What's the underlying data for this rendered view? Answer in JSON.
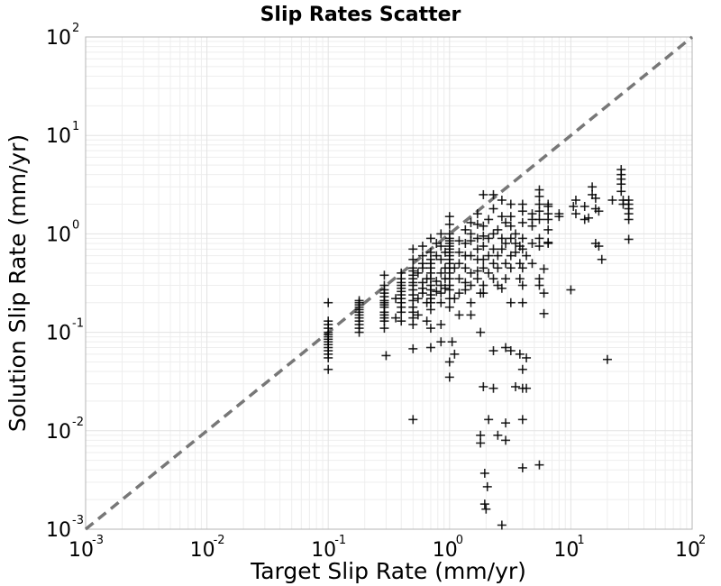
{
  "chart_data": {
    "type": "scatter",
    "title": "Slip Rates Scatter",
    "xlabel": "Target Slip Rate (mm/yr)",
    "ylabel": "Solution Slip Rate (mm/yr)",
    "xscale": "log",
    "yscale": "log",
    "xlim": [
      0.001,
      100
    ],
    "ylim": [
      0.001,
      100
    ],
    "grid": true,
    "x_ticks": [
      {
        "base": "10",
        "exp": "-3"
      },
      {
        "base": "10",
        "exp": "-2"
      },
      {
        "base": "10",
        "exp": "-1"
      },
      {
        "base": "10",
        "exp": "0"
      },
      {
        "base": "10",
        "exp": "1"
      },
      {
        "base": "10",
        "exp": "2"
      }
    ],
    "y_ticks": [
      {
        "base": "10",
        "exp": "-3"
      },
      {
        "base": "10",
        "exp": "-2"
      },
      {
        "base": "10",
        "exp": "-1"
      },
      {
        "base": "10",
        "exp": "0"
      },
      {
        "base": "10",
        "exp": "1"
      },
      {
        "base": "10",
        "exp": "2"
      }
    ],
    "reference_line": {
      "style": "dashed",
      "color": "#777777",
      "x": [
        0.001,
        100
      ],
      "y": [
        0.001,
        100
      ]
    },
    "marker": {
      "shape": "plus",
      "color": "#000000"
    },
    "series": [
      {
        "points": [
          [
            0.1,
            0.2
          ],
          [
            0.1,
            0.13
          ],
          [
            0.1,
            0.12
          ],
          [
            0.1,
            0.11
          ],
          [
            0.1,
            0.1
          ],
          [
            0.1,
            0.095
          ],
          [
            0.1,
            0.09
          ],
          [
            0.1,
            0.085
          ],
          [
            0.1,
            0.08
          ],
          [
            0.1,
            0.075
          ],
          [
            0.1,
            0.07
          ],
          [
            0.1,
            0.065
          ],
          [
            0.1,
            0.06
          ],
          [
            0.1,
            0.055
          ],
          [
            0.1,
            0.042
          ],
          [
            0.18,
            0.21
          ],
          [
            0.18,
            0.2
          ],
          [
            0.18,
            0.19
          ],
          [
            0.18,
            0.18
          ],
          [
            0.18,
            0.17
          ],
          [
            0.18,
            0.16
          ],
          [
            0.18,
            0.15
          ],
          [
            0.18,
            0.14
          ],
          [
            0.18,
            0.13
          ],
          [
            0.18,
            0.12
          ],
          [
            0.18,
            0.11
          ],
          [
            0.18,
            0.1
          ],
          [
            0.29,
            0.38
          ],
          [
            0.29,
            0.3
          ],
          [
            0.29,
            0.27
          ],
          [
            0.29,
            0.25
          ],
          [
            0.29,
            0.23
          ],
          [
            0.29,
            0.21
          ],
          [
            0.29,
            0.2
          ],
          [
            0.29,
            0.19
          ],
          [
            0.29,
            0.18
          ],
          [
            0.29,
            0.16
          ],
          [
            0.29,
            0.15
          ],
          [
            0.29,
            0.14
          ],
          [
            0.29,
            0.13
          ],
          [
            0.29,
            0.11
          ],
          [
            0.3,
            0.058
          ],
          [
            0.36,
            0.22
          ],
          [
            0.36,
            0.14
          ],
          [
            0.4,
            0.4
          ],
          [
            0.4,
            0.35
          ],
          [
            0.4,
            0.32
          ],
          [
            0.4,
            0.3
          ],
          [
            0.4,
            0.28
          ],
          [
            0.4,
            0.26
          ],
          [
            0.4,
            0.24
          ],
          [
            0.4,
            0.22
          ],
          [
            0.4,
            0.2
          ],
          [
            0.4,
            0.18
          ],
          [
            0.4,
            0.16
          ],
          [
            0.4,
            0.13
          ],
          [
            0.5,
            0.7
          ],
          [
            0.5,
            0.55
          ],
          [
            0.5,
            0.45
          ],
          [
            0.5,
            0.42
          ],
          [
            0.5,
            0.38
          ],
          [
            0.5,
            0.35
          ],
          [
            0.5,
            0.32
          ],
          [
            0.5,
            0.3
          ],
          [
            0.5,
            0.27
          ],
          [
            0.5,
            0.24
          ],
          [
            0.5,
            0.21
          ],
          [
            0.5,
            0.18
          ],
          [
            0.5,
            0.16
          ],
          [
            0.5,
            0.14
          ],
          [
            0.5,
            0.12
          ],
          [
            0.5,
            0.068
          ],
          [
            0.5,
            0.013
          ],
          [
            0.55,
            0.4
          ],
          [
            0.55,
            0.22
          ],
          [
            0.55,
            0.15
          ],
          [
            0.6,
            0.75
          ],
          [
            0.6,
            0.6
          ],
          [
            0.6,
            0.5
          ],
          [
            0.6,
            0.45
          ],
          [
            0.6,
            0.32
          ],
          [
            0.6,
            0.28
          ],
          [
            0.6,
            0.25
          ],
          [
            0.65,
            0.35
          ],
          [
            0.65,
            0.2
          ],
          [
            0.65,
            0.13
          ],
          [
            0.7,
            0.9
          ],
          [
            0.7,
            0.65
          ],
          [
            0.7,
            0.55
          ],
          [
            0.7,
            0.5
          ],
          [
            0.7,
            0.45
          ],
          [
            0.7,
            0.4
          ],
          [
            0.7,
            0.35
          ],
          [
            0.7,
            0.3
          ],
          [
            0.7,
            0.27
          ],
          [
            0.7,
            0.24
          ],
          [
            0.7,
            0.22
          ],
          [
            0.7,
            0.2
          ],
          [
            0.7,
            0.17
          ],
          [
            0.7,
            0.11
          ],
          [
            0.7,
            0.07
          ],
          [
            0.78,
            0.8
          ],
          [
            0.78,
            0.6
          ],
          [
            0.78,
            0.33
          ],
          [
            0.78,
            0.26
          ],
          [
            0.85,
            1.0
          ],
          [
            0.85,
            0.75
          ],
          [
            0.85,
            0.55
          ],
          [
            0.85,
            0.4
          ],
          [
            0.85,
            0.3
          ],
          [
            0.85,
            0.25
          ],
          [
            0.85,
            0.2
          ],
          [
            0.85,
            0.12
          ],
          [
            0.85,
            0.08
          ],
          [
            0.92,
            0.65
          ],
          [
            0.92,
            0.45
          ],
          [
            0.92,
            0.35
          ],
          [
            0.92,
            0.28
          ],
          [
            1.0,
            1.5
          ],
          [
            1.0,
            1.25
          ],
          [
            1.0,
            1.0
          ],
          [
            1.0,
            0.9
          ],
          [
            1.0,
            0.85
          ],
          [
            1.0,
            0.8
          ],
          [
            1.0,
            0.75
          ],
          [
            1.0,
            0.7
          ],
          [
            1.0,
            0.65
          ],
          [
            1.0,
            0.6
          ],
          [
            1.0,
            0.55
          ],
          [
            1.0,
            0.5
          ],
          [
            1.0,
            0.45
          ],
          [
            1.0,
            0.4
          ],
          [
            1.0,
            0.35
          ],
          [
            1.0,
            0.3
          ],
          [
            1.0,
            0.27
          ],
          [
            1.0,
            0.22
          ],
          [
            1.0,
            0.18
          ],
          [
            1.0,
            0.05
          ],
          [
            1.0,
            0.035
          ],
          [
            1.05,
            0.08
          ],
          [
            1.1,
            0.45
          ],
          [
            1.1,
            0.22
          ],
          [
            1.1,
            0.06
          ],
          [
            1.2,
            0.85
          ],
          [
            1.2,
            0.65
          ],
          [
            1.2,
            0.5
          ],
          [
            1.2,
            0.35
          ],
          [
            1.2,
            0.25
          ],
          [
            1.2,
            0.15
          ],
          [
            1.35,
            1.1
          ],
          [
            1.35,
            0.8
          ],
          [
            1.35,
            0.6
          ],
          [
            1.35,
            0.45
          ],
          [
            1.35,
            0.32
          ],
          [
            1.35,
            0.27
          ],
          [
            1.5,
            1.3
          ],
          [
            1.5,
            1.0
          ],
          [
            1.5,
            0.85
          ],
          [
            1.5,
            0.6
          ],
          [
            1.5,
            0.4
          ],
          [
            1.5,
            0.3
          ],
          [
            1.5,
            0.2
          ],
          [
            1.5,
            0.15
          ],
          [
            1.7,
            1.6
          ],
          [
            1.7,
            1.25
          ],
          [
            1.7,
            0.9
          ],
          [
            1.7,
            0.7
          ],
          [
            1.7,
            0.55
          ],
          [
            1.7,
            0.42
          ],
          [
            1.7,
            0.35
          ],
          [
            1.8,
            0.25
          ],
          [
            1.8,
            0.1
          ],
          [
            1.8,
            0.009
          ],
          [
            1.8,
            0.0075
          ],
          [
            1.9,
            2.5
          ],
          [
            1.9,
            1.2
          ],
          [
            1.9,
            0.95
          ],
          [
            1.9,
            0.75
          ],
          [
            1.9,
            0.55
          ],
          [
            1.9,
            0.45
          ],
          [
            1.9,
            0.3
          ],
          [
            1.9,
            0.25
          ],
          [
            1.9,
            0.028
          ],
          [
            1.95,
            0.0037
          ],
          [
            1.95,
            0.0018
          ],
          [
            2.0,
            0.0016
          ],
          [
            2.05,
            0.0027
          ],
          [
            2.1,
            1.4
          ],
          [
            2.1,
            0.9
          ],
          [
            2.1,
            0.6
          ],
          [
            2.1,
            0.4
          ],
          [
            2.1,
            0.013
          ],
          [
            2.3,
            2.5
          ],
          [
            2.3,
            1.8
          ],
          [
            2.3,
            1.0
          ],
          [
            2.3,
            0.7
          ],
          [
            2.3,
            0.5
          ],
          [
            2.3,
            0.35
          ],
          [
            2.3,
            0.065
          ],
          [
            2.3,
            0.027
          ],
          [
            2.5,
            1.1
          ],
          [
            2.5,
            0.6
          ],
          [
            2.5,
            0.45
          ],
          [
            2.5,
            0.3
          ],
          [
            2.5,
            0.009
          ],
          [
            2.7,
            2.2
          ],
          [
            2.7,
            1.5
          ],
          [
            2.7,
            0.9
          ],
          [
            2.7,
            0.7
          ],
          [
            2.7,
            0.28
          ],
          [
            2.7,
            0.0011
          ],
          [
            2.9,
            1.3
          ],
          [
            2.9,
            0.8
          ],
          [
            2.9,
            0.5
          ],
          [
            2.9,
            0.35
          ],
          [
            2.9,
            0.07
          ],
          [
            2.9,
            0.012
          ],
          [
            2.9,
            0.008
          ],
          [
            3.2,
            2.0
          ],
          [
            3.2,
            1.5
          ],
          [
            3.2,
            1.2
          ],
          [
            3.2,
            0.9
          ],
          [
            3.2,
            0.6
          ],
          [
            3.2,
            0.45
          ],
          [
            3.2,
            0.2
          ],
          [
            3.2,
            0.065
          ],
          [
            3.5,
            1.0
          ],
          [
            3.5,
            0.8
          ],
          [
            3.5,
            0.65
          ],
          [
            3.5,
            0.028
          ],
          [
            3.8,
            0.75
          ],
          [
            3.8,
            0.5
          ],
          [
            3.8,
            0.35
          ],
          [
            3.8,
            0.06
          ],
          [
            4.0,
            2.0
          ],
          [
            4.0,
            1.7
          ],
          [
            4.0,
            1.3
          ],
          [
            4.0,
            0.9
          ],
          [
            4.0,
            0.7
          ],
          [
            4.0,
            0.45
          ],
          [
            4.0,
            0.3
          ],
          [
            4.0,
            0.2
          ],
          [
            4.0,
            0.042
          ],
          [
            4.0,
            0.027
          ],
          [
            4.0,
            0.013
          ],
          [
            4.0,
            0.0042
          ],
          [
            4.3,
            0.6
          ],
          [
            4.3,
            0.055
          ],
          [
            4.3,
            0.027
          ],
          [
            4.8,
            1.6
          ],
          [
            4.8,
            1.4
          ],
          [
            4.8,
            1.2
          ],
          [
            4.8,
            0.8
          ],
          [
            4.8,
            0.5
          ],
          [
            5.5,
            2.8
          ],
          [
            5.5,
            2.4
          ],
          [
            5.5,
            2.0
          ],
          [
            5.5,
            1.7
          ],
          [
            5.5,
            1.4
          ],
          [
            5.5,
            0.9
          ],
          [
            5.5,
            0.75
          ],
          [
            5.5,
            0.35
          ],
          [
            5.5,
            0.3
          ],
          [
            5.5,
            0.0045
          ],
          [
            6.0,
            0.44
          ],
          [
            6.0,
            0.25
          ],
          [
            6.0,
            0.155
          ],
          [
            6.5,
            2.0
          ],
          [
            6.5,
            1.9
          ],
          [
            6.5,
            1.6
          ],
          [
            6.5,
            1.4
          ],
          [
            6.5,
            1.1
          ],
          [
            6.5,
            0.82
          ],
          [
            6.5,
            0.8
          ],
          [
            8.0,
            1.6
          ],
          [
            8.0,
            1.5
          ],
          [
            10,
            0.27
          ],
          [
            10.5,
            1.9
          ],
          [
            11,
            2.2
          ],
          [
            11,
            1.6
          ],
          [
            13,
            1.9
          ],
          [
            13,
            1.4
          ],
          [
            14,
            1.45
          ],
          [
            15,
            2.5
          ],
          [
            15,
            3.0
          ],
          [
            16,
            2.3
          ],
          [
            16,
            1.8
          ],
          [
            16,
            0.8
          ],
          [
            17,
            1.7
          ],
          [
            17,
            0.75
          ],
          [
            18,
            0.55
          ],
          [
            20,
            0.053
          ],
          [
            22,
            2.2
          ],
          [
            26,
            4.5
          ],
          [
            26,
            4.0
          ],
          [
            26,
            3.6
          ],
          [
            26,
            3.2
          ],
          [
            26,
            2.7
          ],
          [
            27,
            2.2
          ],
          [
            27,
            2.0
          ],
          [
            30,
            2.2
          ],
          [
            30,
            2.0
          ],
          [
            30,
            1.8
          ],
          [
            30,
            1.6
          ],
          [
            30,
            1.4
          ],
          [
            30,
            0.88
          ]
        ]
      }
    ]
  }
}
